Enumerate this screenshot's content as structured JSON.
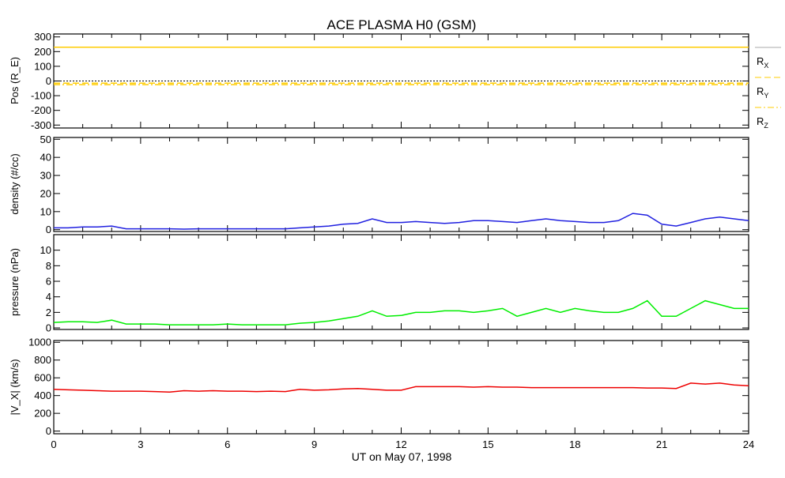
{
  "chart_data": [
    {
      "type": "line",
      "title": "ACE PLASMA H0 (GSM)",
      "ylabel": "Pos (R_E)",
      "ylim": [
        -320,
        320
      ],
      "yticks": [
        -300,
        -200,
        -100,
        0,
        100,
        200,
        300
      ],
      "legend": [
        "R_X",
        "R_Y",
        "R_Z"
      ],
      "legend_placement": "right",
      "color": "#ffcc00",
      "x": [
        0,
        24
      ],
      "series": [
        {
          "name": "Rx",
          "style": "solid",
          "values": [
            230,
            230
          ]
        },
        {
          "name": "Ry",
          "style": "dashed",
          "values": [
            -15,
            -15
          ]
        },
        {
          "name": "Rz",
          "style": "dashdot",
          "values": [
            -25,
            -25
          ]
        }
      ]
    },
    {
      "type": "line",
      "ylabel": "density (#/cc)",
      "ylim": [
        -1,
        51
      ],
      "yticks": [
        0,
        10,
        20,
        30,
        40,
        50
      ],
      "color": "#2020e0",
      "values": [
        1,
        1,
        1.5,
        1.5,
        2,
        0.5,
        0.5,
        0.5,
        0.5,
        0.3,
        0.5,
        0.5,
        0.5,
        0.5,
        0.5,
        0.5,
        0.5,
        1,
        1.5,
        2,
        3,
        3.5,
        6,
        4,
        4,
        4.5,
        4,
        3.5,
        4,
        5,
        5,
        4.5,
        4,
        5,
        6,
        5,
        4.5,
        4,
        4,
        5,
        9,
        8,
        3,
        2,
        4,
        6,
        7,
        6,
        5
      ]
    },
    {
      "type": "line",
      "ylabel": "pressure (nPa)",
      "ylim": [
        -0.2,
        12
      ],
      "yticks": [
        0,
        2,
        4,
        6,
        8,
        10
      ],
      "color": "#00ee00",
      "values": [
        0.7,
        0.8,
        0.8,
        0.7,
        1,
        0.5,
        0.5,
        0.5,
        0.4,
        0.4,
        0.4,
        0.4,
        0.5,
        0.4,
        0.4,
        0.4,
        0.4,
        0.6,
        0.7,
        0.9,
        1.2,
        1.5,
        2.2,
        1.5,
        1.6,
        2,
        2,
        2.2,
        2.2,
        2,
        2.2,
        2.5,
        1.5,
        2,
        2.5,
        2,
        2.5,
        2.2,
        2,
        2,
        2.5,
        3.5,
        1.5,
        1.5,
        2.5,
        3.5,
        3,
        2.5,
        2.5
      ]
    },
    {
      "type": "line",
      "ylabel": "|V_X| (km/s)",
      "ylim": [
        -30,
        1020
      ],
      "yticks": [
        0,
        200,
        400,
        600,
        800,
        1000
      ],
      "color": "#ee0000",
      "values": [
        470,
        465,
        460,
        455,
        450,
        450,
        450,
        445,
        440,
        455,
        450,
        455,
        450,
        450,
        445,
        450,
        445,
        470,
        460,
        465,
        475,
        480,
        470,
        460,
        460,
        500,
        500,
        500,
        500,
        495,
        500,
        495,
        495,
        490,
        490,
        490,
        490,
        490,
        490,
        490,
        490,
        485,
        485,
        480,
        540,
        530,
        540,
        520,
        510
      ]
    }
  ],
  "xaxis": {
    "label": "UT on May 07, 1998",
    "xlim": [
      0,
      24
    ],
    "ticks": [
      "0",
      "3",
      "6",
      "9",
      "12",
      "15",
      "18",
      "21",
      "24"
    ]
  }
}
